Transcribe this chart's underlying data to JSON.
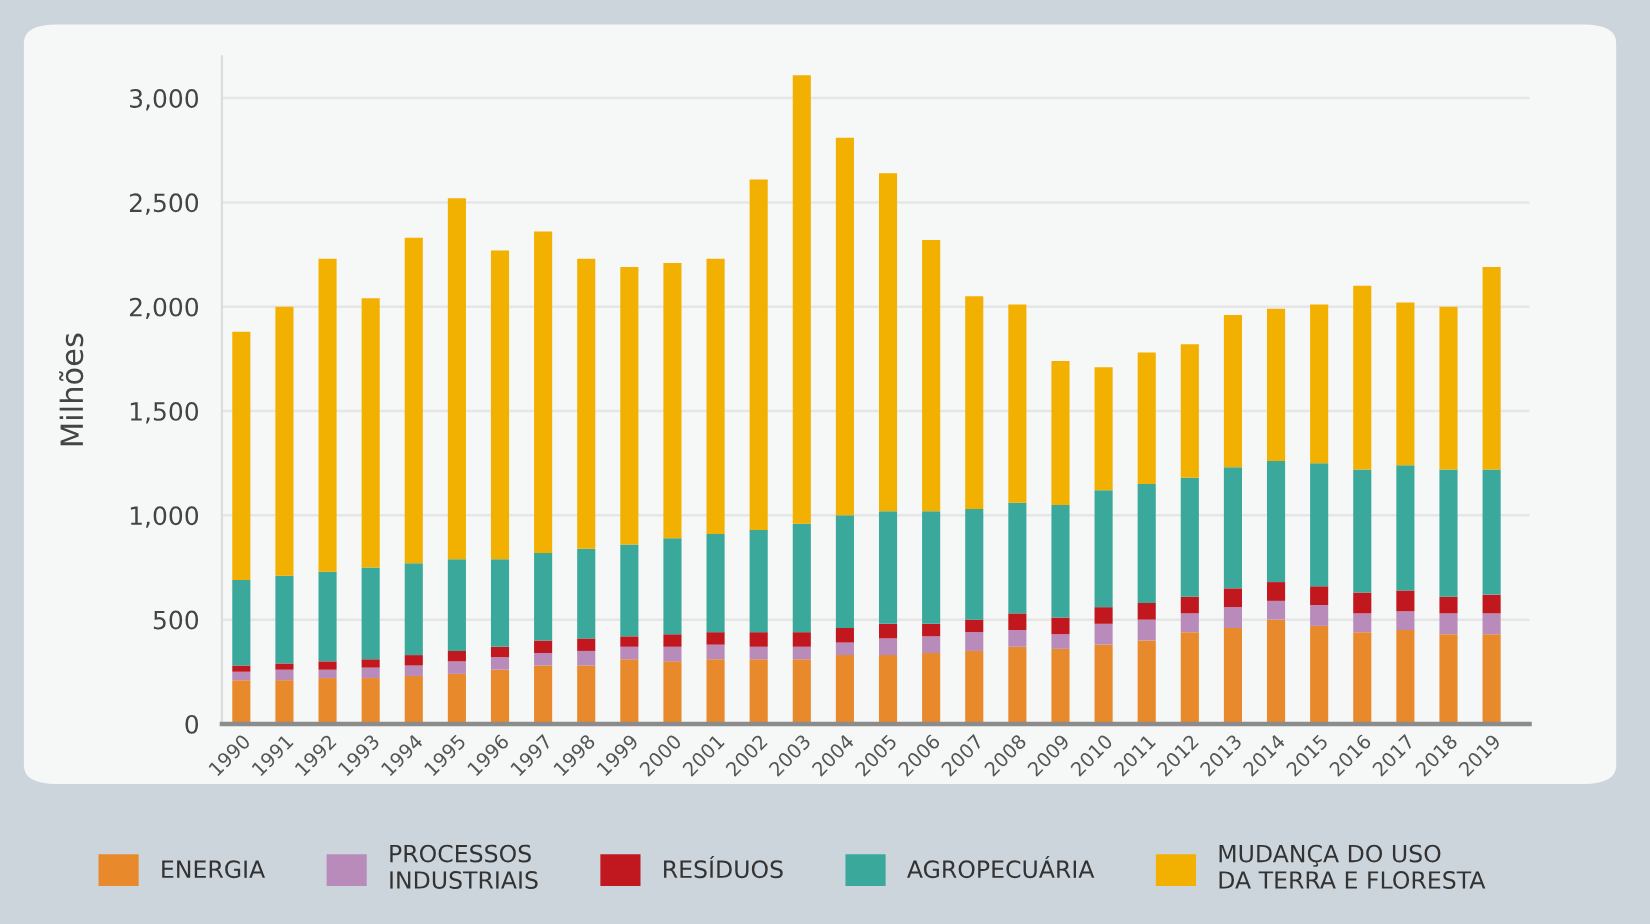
{
  "chart_data": {
    "type": "bar",
    "stacked": true,
    "ylabel": "Milhões",
    "categories": [
      "1990",
      "1991",
      "1992",
      "1993",
      "1994",
      "1995",
      "1996",
      "1997",
      "1998",
      "1999",
      "2000",
      "2001",
      "2002",
      "2003",
      "2004",
      "2005",
      "2006",
      "2007",
      "2008",
      "2009",
      "2010",
      "2011",
      "2012",
      "2013",
      "2014",
      "2015",
      "2016",
      "2017",
      "2018",
      "2019"
    ],
    "series": [
      {
        "name": "ENERGIA",
        "color": "#e8892b",
        "values": [
          210,
          210,
          220,
          220,
          230,
          240,
          260,
          280,
          280,
          310,
          300,
          310,
          310,
          310,
          330,
          330,
          340,
          350,
          370,
          360,
          380,
          400,
          440,
          460,
          500,
          470,
          440,
          450,
          430,
          430
        ]
      },
      {
        "name": "PROCESSOS\nINDUSTRIAIS",
        "color": "#b98bbb",
        "values": [
          40,
          50,
          40,
          50,
          50,
          60,
          60,
          60,
          70,
          60,
          70,
          70,
          60,
          60,
          60,
          80,
          80,
          90,
          80,
          70,
          100,
          100,
          90,
          100,
          90,
          100,
          90,
          90,
          100,
          100
        ]
      },
      {
        "name": "RESÍDUOS",
        "color": "#c0181e",
        "values": [
          30,
          30,
          40,
          40,
          50,
          50,
          50,
          60,
          60,
          50,
          60,
          60,
          70,
          70,
          70,
          70,
          60,
          60,
          80,
          80,
          80,
          80,
          80,
          90,
          90,
          90,
          100,
          100,
          80,
          90
        ]
      },
      {
        "name": "AGROPECUÁRIA",
        "color": "#3aa89a",
        "values": [
          410,
          420,
          430,
          440,
          440,
          440,
          420,
          420,
          430,
          440,
          460,
          470,
          490,
          520,
          540,
          540,
          540,
          530,
          530,
          540,
          560,
          570,
          570,
          580,
          580,
          590,
          590,
          600,
          610,
          600
        ]
      },
      {
        "name": "MUDANÇA DO USO\nDA TERRA E FLORESTA",
        "color": "#f2b100",
        "values": [
          1190,
          1290,
          1500,
          1290,
          1560,
          1730,
          1480,
          1540,
          1390,
          1330,
          1320,
          1320,
          1680,
          2150,
          1810,
          1620,
          1300,
          1020,
          950,
          690,
          590,
          630,
          640,
          730,
          730,
          760,
          880,
          780,
          780,
          970
        ]
      }
    ],
    "ylim": [
      0,
      3200
    ],
    "yticks": [
      {
        "value": 0,
        "label": "0"
      },
      {
        "value": 500,
        "label": "500"
      },
      {
        "value": 1000,
        "label": "1,000"
      },
      {
        "value": 1500,
        "label": "1,500"
      },
      {
        "value": 2000,
        "label": "2,000"
      },
      {
        "value": 2500,
        "label": "2,500"
      },
      {
        "value": 3000,
        "label": "3,000"
      }
    ],
    "grid": "y",
    "legend": "bottom"
  }
}
